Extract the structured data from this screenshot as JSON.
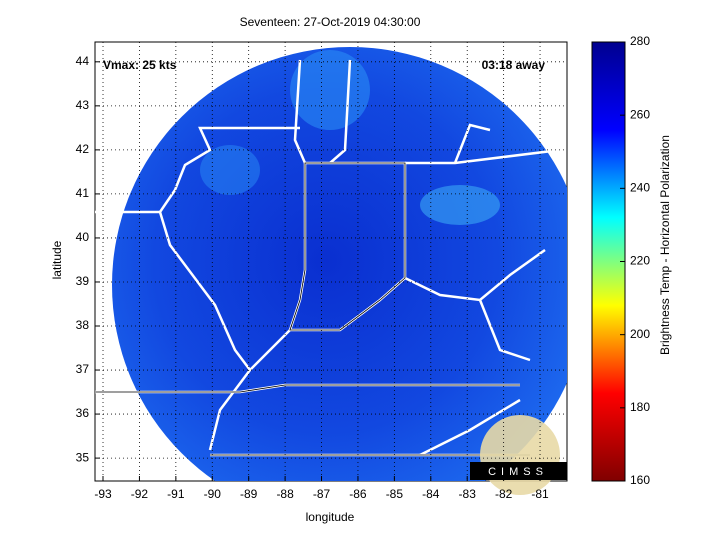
{
  "chart_data": {
    "type": "map",
    "title": "Seventeen: 27-Oct-2019 04:30:00",
    "x_label": "longitude",
    "y_label": "latitude",
    "xlim": [
      -93.22,
      -80.26
    ],
    "ylim": [
      34.48,
      44.45
    ],
    "xticks": [
      -93,
      -92,
      -91,
      -90,
      -89,
      -88,
      -87,
      -86,
      -85,
      -84,
      -83,
      -82,
      -81
    ],
    "yticks": [
      35,
      36,
      37,
      38,
      39,
      40,
      41,
      42,
      43,
      44
    ],
    "grid": true,
    "annotations": [
      "Vmax: 25 kts",
      "03:18 away"
    ],
    "logo": "CIMSS",
    "colorbar": {
      "label": "Brightness Temp - Horizontal Polarization",
      "lim": [
        160,
        280
      ],
      "ticks": [
        160,
        180,
        200,
        220,
        240,
        260,
        280
      ],
      "colormap": [
        "#800000",
        "#ff0000",
        "#ffff00",
        "#00ffff",
        "#0000ff",
        "#00008f"
      ]
    }
  }
}
